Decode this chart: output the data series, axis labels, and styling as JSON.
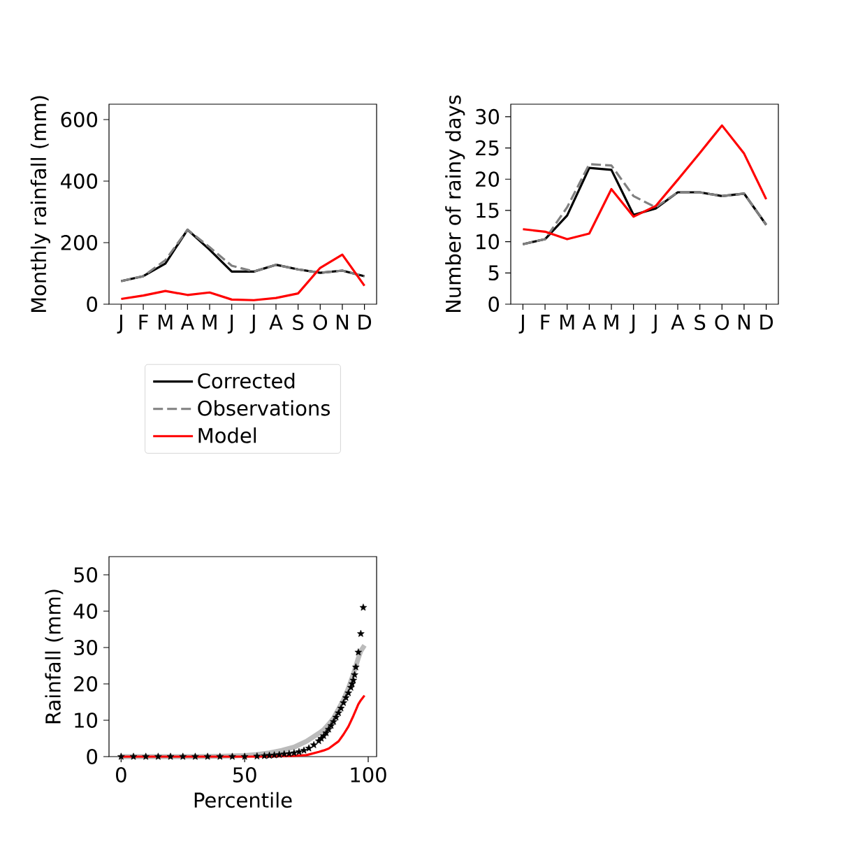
{
  "chart_data": [
    {
      "type": "line",
      "ylabel": "Monthly rainfall (mm)",
      "categories": [
        "J",
        "F",
        "M",
        "A",
        "M",
        "J",
        "J",
        "A",
        "S",
        "O",
        "N",
        "D"
      ],
      "ylim": [
        0,
        650
      ],
      "yticks": [
        0,
        200,
        400,
        600
      ],
      "legend": "bottom",
      "series": [
        {
          "name": "Corrected",
          "color": "#000000",
          "values": [
            75,
            91,
            132,
            242,
            177,
            106,
            106,
            128,
            113,
            102,
            109,
            91
          ]
        },
        {
          "name": "Observations",
          "color": "#808080",
          "line_style": "dashed",
          "values": [
            75,
            91,
            143,
            242,
            185,
            125,
            106,
            128,
            113,
            102,
            109,
            91
          ]
        },
        {
          "name": "Model",
          "color": "#ff0000",
          "values": [
            17,
            28,
            43,
            30,
            38,
            15,
            13,
            20,
            35,
            118,
            161,
            60
          ]
        }
      ]
    },
    {
      "type": "line",
      "ylabel": "Number of rainy days",
      "categories": [
        "J",
        "F",
        "M",
        "A",
        "M",
        "J",
        "J",
        "A",
        "S",
        "O",
        "N",
        "D"
      ],
      "ylim": [
        0,
        32
      ],
      "yticks": [
        0,
        5,
        10,
        15,
        20,
        25,
        30
      ],
      "series": [
        {
          "color": "#000000",
          "values": [
            9.6,
            10.4,
            14.2,
            21.8,
            21.5,
            14.3,
            15.3,
            17.9,
            17.9,
            17.3,
            17.7,
            12.7
          ]
        },
        {
          "color": "#808080",
          "line_style": "dashed",
          "values": [
            9.6,
            10.4,
            15.5,
            22.4,
            22.2,
            17.3,
            15.5,
            17.9,
            17.9,
            17.3,
            17.7,
            12.7
          ]
        },
        {
          "color": "#ff0000",
          "values": [
            12.0,
            11.6,
            10.4,
            11.3,
            18.4,
            14.0,
            15.7,
            19.9,
            24.2,
            28.6,
            24.1,
            16.8
          ]
        }
      ]
    },
    {
      "type": "line",
      "xlabel": "Percentile",
      "ylabel": "Rainfall (mm)",
      "xlim": [
        -4.9,
        103.4
      ],
      "xticks": [
        0,
        50,
        100
      ],
      "ylim": [
        0,
        55
      ],
      "yticks": [
        0,
        10,
        20,
        30,
        40,
        50
      ],
      "series": [
        {
          "color": "#bbbbbb",
          "x": [
            0,
            10,
            20,
            30,
            40,
            45,
            50,
            55,
            60,
            65,
            70,
            75,
            80,
            82,
            84,
            86,
            88,
            90,
            92,
            94,
            96,
            97,
            98.5
          ],
          "values": [
            0,
            0,
            0,
            0,
            0.1,
            0.2,
            0.3,
            0.6,
            1.0,
            1.7,
            2.6,
            4.2,
            6.4,
            7.4,
            8.9,
            10.6,
            13.1,
            15.6,
            18.8,
            22.7,
            27.1,
            29.0,
            30.6
          ]
        },
        {
          "type": "scatter",
          "marker": "star",
          "color": "#000000",
          "x": [
            0,
            5,
            10,
            15,
            20,
            25,
            30,
            35,
            40,
            45,
            50,
            55,
            58,
            60,
            62,
            64,
            66,
            68,
            70,
            72,
            74,
            76,
            78,
            80,
            81,
            82,
            83,
            84,
            85,
            86,
            87,
            88,
            89,
            90,
            91,
            92,
            93,
            93.5,
            94,
            94.5,
            95,
            96,
            97,
            98
          ],
          "values": [
            0,
            0,
            0,
            0,
            0,
            0,
            0,
            0,
            0,
            0,
            0,
            0.1,
            0.2,
            0.3,
            0.4,
            0.5,
            0.7,
            0.8,
            1.0,
            1.3,
            1.7,
            2.3,
            3.2,
            4.3,
            5.0,
            5.7,
            6.5,
            7.5,
            8.5,
            9.6,
            10.8,
            12.0,
            13.3,
            14.8,
            16.2,
            17.5,
            19.0,
            20.0,
            21.0,
            22.5,
            24.6,
            28.7,
            33.8,
            41.0
          ]
        },
        {
          "color": "#ff0000",
          "x": [
            0,
            20,
            40,
            60,
            65,
            70,
            75,
            80,
            82,
            84,
            86,
            88,
            90,
            92,
            94,
            96,
            97,
            98.5
          ],
          "values": [
            0,
            0,
            0,
            0,
            0.1,
            0.2,
            0.4,
            1.3,
            1.7,
            2.2,
            3.2,
            4.2,
            6.1,
            8.3,
            11.2,
            14.4,
            15.5,
            16.8
          ]
        }
      ]
    }
  ]
}
